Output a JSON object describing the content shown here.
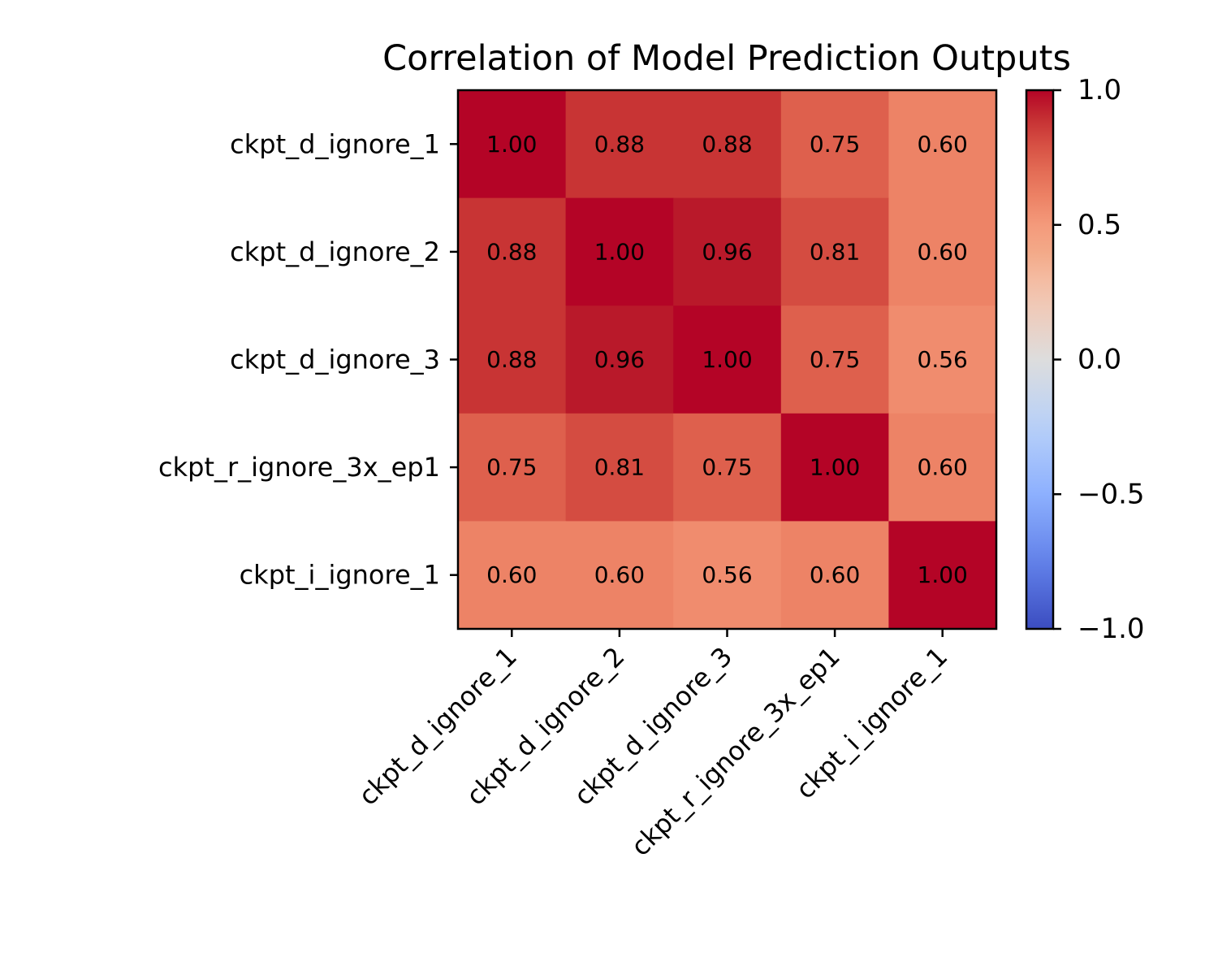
{
  "chart_data": {
    "type": "heatmap",
    "title": "Correlation of Model Prediction Outputs",
    "row_labels": [
      "ckpt_d_ignore_1",
      "ckpt_d_ignore_2",
      "ckpt_d_ignore_3",
      "ckpt_r_ignore_3x_ep1",
      "ckpt_i_ignore_1"
    ],
    "col_labels": [
      "ckpt_d_ignore_1",
      "ckpt_d_ignore_2",
      "ckpt_d_ignore_3",
      "ckpt_r_ignore_3x_ep1",
      "ckpt_i_ignore_1"
    ],
    "values": [
      [
        1.0,
        0.88,
        0.88,
        0.75,
        0.6
      ],
      [
        0.88,
        1.0,
        0.96,
        0.81,
        0.6
      ],
      [
        0.88,
        0.96,
        1.0,
        0.75,
        0.56
      ],
      [
        0.75,
        0.81,
        0.75,
        1.0,
        0.6
      ],
      [
        0.6,
        0.6,
        0.56,
        0.6,
        1.0
      ]
    ],
    "cell_labels": [
      [
        "1.00",
        "0.88",
        "0.88",
        "0.75",
        "0.60"
      ],
      [
        "0.88",
        "1.00",
        "0.96",
        "0.81",
        "0.60"
      ],
      [
        "0.88",
        "0.96",
        "1.00",
        "0.75",
        "0.56"
      ],
      [
        "0.75",
        "0.81",
        "0.75",
        "1.00",
        "0.60"
      ],
      [
        "0.60",
        "0.60",
        "0.56",
        "0.60",
        "1.00"
      ]
    ],
    "colormap": "coolwarm",
    "vmin": -1.0,
    "vmax": 1.0,
    "colorbar": {
      "ticks": [
        1.0,
        0.5,
        0.0,
        -0.5,
        -1.0
      ],
      "tick_labels": [
        "1.0",
        "0.5",
        "0.0",
        "−0.5",
        "−1.0"
      ]
    },
    "grid": false,
    "colors": {
      "low": "#3b4cc0",
      "mid": "#dddddd",
      "high": "#b40426"
    }
  }
}
